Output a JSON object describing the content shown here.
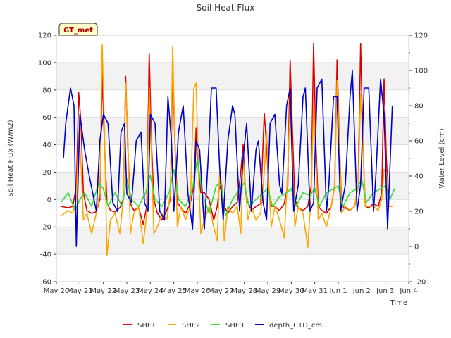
{
  "chart_data": {
    "type": "line",
    "title": "Soil Heat Flux",
    "xlabel": "Time",
    "ylabel_left": "Soil Heat Flux (W/m2)",
    "ylabel_right": "Water Level (cm)",
    "badge": "GT_met",
    "ylim_left": [
      -60,
      120
    ],
    "ylim_right": [
      -20,
      120
    ],
    "yticks_left": [
      -60,
      -40,
      -20,
      0,
      20,
      40,
      60,
      80,
      100,
      120
    ],
    "yticks_right": [
      -20,
      0,
      20,
      40,
      60,
      80,
      100,
      120
    ],
    "x_range_days": [
      0,
      15
    ],
    "x_ticks": [
      {
        "day": 0,
        "label": "May 20"
      },
      {
        "day": 1,
        "label": "May 21"
      },
      {
        "day": 2,
        "label": "May 22"
      },
      {
        "day": 3,
        "label": "May 23"
      },
      {
        "day": 4,
        "label": "May 24"
      },
      {
        "day": 5,
        "label": "May 25"
      },
      {
        "day": 6,
        "label": "May 26"
      },
      {
        "day": 7,
        "label": "May 27"
      },
      {
        "day": 8,
        "label": "May 28"
      },
      {
        "day": 9,
        "label": "May 29"
      },
      {
        "day": 10,
        "label": "May 30"
      },
      {
        "day": 11,
        "label": "May 31"
      },
      {
        "day": 12,
        "label": "Jun 1"
      },
      {
        "day": 13,
        "label": "Jun 2"
      },
      {
        "day": 14,
        "label": "Jun 3"
      },
      {
        "day": 15,
        "label": "Jun 4"
      }
    ],
    "series": [
      {
        "name": "SHF1",
        "axis": "left",
        "color": "#dd0000",
        "x": [
          0.2,
          0.5,
          0.7,
          0.85,
          0.95,
          1.05,
          1.15,
          1.3,
          1.5,
          1.7,
          1.85,
          1.95,
          2.05,
          2.15,
          2.3,
          2.5,
          2.7,
          2.85,
          2.95,
          3.05,
          3.15,
          3.3,
          3.5,
          3.7,
          3.85,
          3.95,
          4.05,
          4.15,
          4.3,
          4.5,
          4.7,
          4.85,
          4.95,
          5.05,
          5.15,
          5.3,
          5.5,
          5.7,
          5.85,
          5.95,
          6.05,
          6.15,
          6.3,
          6.5,
          6.7,
          6.85,
          6.95,
          7.05,
          7.15,
          7.3,
          7.5,
          7.7,
          7.85,
          7.95,
          8.05,
          8.15,
          8.3,
          8.5,
          8.7,
          8.85,
          8.95,
          9.05,
          9.15,
          9.3,
          9.5,
          9.7,
          9.85,
          9.95,
          10.05,
          10.15,
          10.3,
          10.5,
          10.7,
          10.85,
          10.95,
          11.05,
          11.15,
          11.3,
          11.5,
          11.7,
          11.85,
          11.95,
          12.05,
          12.15,
          12.3,
          12.5,
          12.7,
          12.85,
          12.95,
          13.05,
          13.15,
          13.3,
          13.5,
          13.7,
          13.85,
          13.95,
          14.05,
          14.15,
          14.3
        ],
        "values": [
          -5,
          -6,
          -5,
          10,
          78,
          55,
          5,
          -8,
          -10,
          -9,
          0,
          92,
          40,
          -2,
          -8,
          -9,
          -6,
          0,
          90,
          35,
          -3,
          -8,
          -6,
          -18,
          -5,
          107,
          40,
          0,
          -10,
          -15,
          -8,
          0,
          98,
          40,
          -2,
          -6,
          -10,
          -3,
          10,
          52,
          20,
          5,
          5,
          0,
          -15,
          -5,
          10,
          5,
          -5,
          -10,
          -5,
          -2,
          20,
          40,
          5,
          -2,
          -8,
          -5,
          -3,
          63,
          40,
          5,
          -5,
          -5,
          -8,
          -3,
          10,
          102,
          50,
          0,
          -6,
          -8,
          -5,
          10,
          114,
          40,
          -5,
          -8,
          -10,
          -5,
          10,
          102,
          40,
          -5,
          -6,
          -8,
          -5,
          10,
          114,
          40,
          -5,
          -6,
          -3,
          -5,
          5,
          88,
          30,
          -5,
          -5
        ]
      },
      {
        "name": "SHF2",
        "axis": "left",
        "color": "#ffa500",
        "x": [
          0.2,
          0.5,
          0.7,
          0.85,
          0.95,
          1.05,
          1.15,
          1.3,
          1.5,
          1.7,
          1.85,
          1.95,
          2.05,
          2.15,
          2.3,
          2.5,
          2.7,
          2.85,
          2.95,
          3.05,
          3.15,
          3.3,
          3.5,
          3.7,
          3.85,
          3.95,
          4.05,
          4.15,
          4.3,
          4.5,
          4.7,
          4.85,
          4.95,
          5.05,
          5.15,
          5.3,
          5.5,
          5.7,
          5.85,
          5.95,
          6.05,
          6.15,
          6.3,
          6.5,
          6.7,
          6.85,
          6.95,
          7.05,
          7.15,
          7.3,
          7.5,
          7.7,
          7.85,
          7.95,
          8.05,
          8.15,
          8.3,
          8.5,
          8.7,
          8.85,
          8.95,
          9.05,
          9.15,
          9.3,
          9.5,
          9.7,
          9.85,
          9.95,
          10.05,
          10.15,
          10.3,
          10.5,
          10.7,
          10.85,
          10.95,
          11.05,
          11.15,
          11.3,
          11.5,
          11.7,
          11.85,
          11.95,
          12.05,
          12.15,
          12.3,
          12.5,
          12.7,
          12.85,
          12.95,
          13.05,
          13.15,
          13.3,
          13.5,
          13.7,
          13.85,
          13.95,
          14.05,
          14.15,
          14.3
        ],
        "values": [
          -12,
          -8,
          -10,
          0,
          50,
          25,
          -15,
          -10,
          -25,
          -10,
          5,
          113,
          50,
          -41,
          -15,
          -10,
          -25,
          0,
          85,
          40,
          -25,
          -10,
          -5,
          -32,
          -10,
          82,
          30,
          -25,
          -20,
          -10,
          -15,
          5,
          112,
          40,
          -20,
          -5,
          -15,
          -5,
          81,
          85,
          20,
          -25,
          -15,
          -5,
          -20,
          -30,
          20,
          10,
          -30,
          -5,
          -10,
          -5,
          -25,
          30,
          10,
          -15,
          -5,
          -15,
          -10,
          20,
          50,
          10,
          -20,
          -5,
          -15,
          -28,
          20,
          70,
          30,
          -20,
          -5,
          -10,
          -35,
          5,
          69,
          30,
          -15,
          -10,
          -20,
          -5,
          10,
          87,
          40,
          -10,
          -5,
          -8,
          -5,
          10,
          77,
          40,
          -5,
          -5,
          -5,
          -8,
          0,
          22,
          20,
          -5,
          -5
        ]
      },
      {
        "name": "SHF3",
        "axis": "left",
        "color": "#33dd33",
        "x": [
          0.2,
          0.5,
          0.8,
          1.0,
          1.2,
          1.5,
          1.8,
          2.0,
          2.2,
          2.5,
          2.8,
          3.0,
          3.2,
          3.5,
          3.8,
          4.0,
          4.2,
          4.5,
          4.8,
          5.0,
          5.2,
          5.5,
          5.8,
          6.0,
          6.2,
          6.5,
          6.8,
          7.0,
          7.2,
          7.5,
          7.8,
          8.0,
          8.2,
          8.5,
          8.8,
          9.0,
          9.2,
          9.5,
          9.8,
          10.0,
          10.2,
          10.5,
          10.8,
          11.0,
          11.2,
          11.5,
          11.8,
          12.0,
          12.2,
          12.5,
          12.8,
          13.0,
          13.2,
          13.5,
          13.8,
          14.0,
          14.2,
          14.4
        ],
        "values": [
          -2,
          5,
          -8,
          0,
          5,
          -5,
          12,
          8,
          -5,
          5,
          -5,
          15,
          0,
          -5,
          5,
          18,
          0,
          -5,
          5,
          22,
          0,
          -5,
          8,
          30,
          5,
          -10,
          10,
          12,
          -12,
          0,
          8,
          12,
          -5,
          0,
          5,
          8,
          -5,
          2,
          5,
          8,
          -5,
          5,
          3,
          8,
          -5,
          5,
          8,
          10,
          -5,
          5,
          8,
          15,
          -2,
          5,
          8,
          10,
          0,
          8
        ]
      },
      {
        "name": "depth_CTD_cm",
        "axis": "right",
        "color": "#0000cc",
        "x": [
          0.3,
          0.4,
          0.6,
          0.75,
          0.85,
          1.0,
          1.2,
          1.4,
          1.55,
          1.7,
          1.85,
          2.0,
          2.2,
          2.4,
          2.6,
          2.75,
          2.9,
          3.0,
          3.2,
          3.4,
          3.6,
          3.75,
          3.9,
          4.0,
          4.2,
          4.4,
          4.6,
          4.75,
          4.9,
          5.0,
          5.2,
          5.4,
          5.6,
          5.8,
          5.95,
          6.1,
          6.3,
          6.5,
          6.6,
          6.8,
          6.95,
          7.1,
          7.3,
          7.5,
          7.6,
          7.8,
          7.95,
          8.1,
          8.3,
          8.5,
          8.6,
          8.8,
          8.95,
          9.1,
          9.3,
          9.5,
          9.6,
          9.8,
          9.95,
          10.1,
          10.3,
          10.5,
          10.6,
          10.8,
          10.95,
          11.1,
          11.3,
          11.5,
          11.6,
          11.8,
          11.95,
          12.1,
          12.3,
          12.5,
          12.6,
          12.8,
          12.95,
          13.1,
          13.3,
          13.5,
          13.6,
          13.8,
          13.95,
          14.1,
          14.3
        ],
        "values": [
          50,
          70,
          90,
          80,
          0,
          75,
          55,
          40,
          30,
          20,
          60,
          75,
          70,
          25,
          20,
          65,
          70,
          30,
          25,
          60,
          65,
          25,
          20,
          75,
          70,
          20,
          15,
          85,
          60,
          20,
          65,
          80,
          30,
          10,
          60,
          55,
          10,
          60,
          90,
          90,
          45,
          15,
          60,
          80,
          75,
          20,
          50,
          70,
          20,
          55,
          60,
          25,
          15,
          70,
          75,
          35,
          30,
          80,
          90,
          20,
          35,
          85,
          90,
          20,
          25,
          90,
          95,
          20,
          35,
          85,
          85,
          20,
          35,
          85,
          100,
          20,
          35,
          90,
          90,
          20,
          40,
          95,
          75,
          10,
          80
        ]
      }
    ]
  }
}
